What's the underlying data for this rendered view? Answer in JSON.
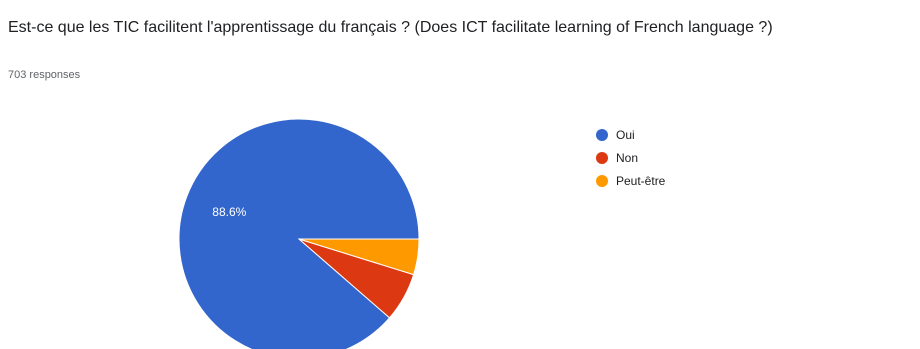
{
  "question": {
    "title": "Est-ce que les TIC facilitent l'apprentissage du français ? (Does ICT facilitate learning of French language ?)",
    "response_count": "703 responses"
  },
  "colors": {
    "oui": "#3366cc",
    "non": "#dc3912",
    "peut_etre": "#ff9900"
  },
  "chart_data": {
    "type": "pie",
    "title": "",
    "legend_position": "right",
    "start_angle": "3 o'clock",
    "direction": "counter-clockwise",
    "slices": [
      {
        "label": "Oui",
        "value": 88.6,
        "color": "#3366cc",
        "data_label": "88.6%"
      },
      {
        "label": "Non",
        "value": 6.6,
        "color": "#dc3912",
        "data_label": ""
      },
      {
        "label": "Peut-être",
        "value": 4.8,
        "color": "#ff9900",
        "data_label": ""
      }
    ]
  }
}
